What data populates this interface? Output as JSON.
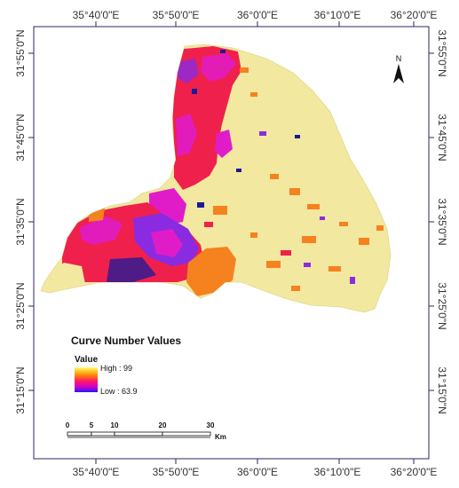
{
  "coords": {
    "top": [
      "35°40'0\"E",
      "35°50'0\"E",
      "36°0'0\"E",
      "36°10'0\"E",
      "36°20'0\"E"
    ],
    "bottom": [
      "35°40'0\"E",
      "35°50'0\"E",
      "36°0'0\"E",
      "36°10'0\"E",
      "36°20'0\"E"
    ],
    "left": [
      "31°55'0\"N",
      "31°45'0\"N",
      "31°35'0\"N",
      "31°25'0\"N",
      "31°15'0\"N"
    ],
    "right": [
      "31°55'0\"N",
      "31°45'0\"N",
      "31°35'0\"N",
      "31°25'0\"N",
      "31°15'0\"N"
    ]
  },
  "north_arrow": {
    "label": "N"
  },
  "legend": {
    "title": "Curve Number Values",
    "subtitle": "Value",
    "high_label": "High : 99",
    "low_label": "Low : 63.9",
    "gradient_colors": [
      "#ffff66",
      "#ff8c00",
      "#ff1a66",
      "#cc00cc",
      "#1a1aff"
    ]
  },
  "scale_bar": {
    "labels": [
      "0",
      "5",
      "10",
      "20",
      "30"
    ],
    "unit": "Km"
  },
  "colors": {
    "background_class": "#f2e8a0",
    "orange_class": "#f5821f",
    "red_class": "#f0204c",
    "magenta_class": "#e01cc8",
    "purple_class": "#8a2be2",
    "blue_class": "#1a1a99",
    "frame": "#2a2a5a"
  }
}
